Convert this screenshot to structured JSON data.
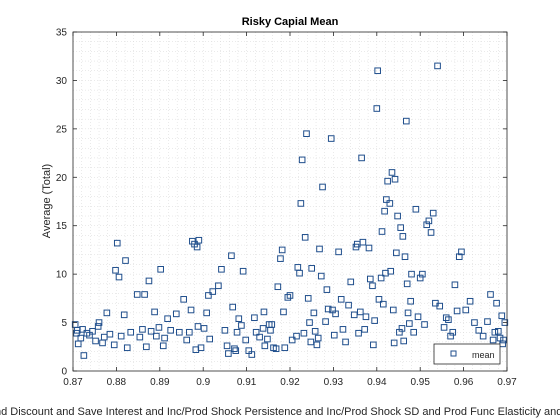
{
  "chart_data": {
    "type": "scatter",
    "title": "Risky Capial Mean",
    "xlabel": "Rand and Discount and Save Interest and Inc/Prod Shock Persistence and Inc/Prod Shock SD and Prod Func Elasticity and ... Discount",
    "ylabel": "Average (Total)",
    "xlim": [
      0.87,
      0.97
    ],
    "ylim": [
      0,
      35
    ],
    "xticks": [
      "0.87",
      "0.88",
      "0.89",
      "0.9",
      "0.91",
      "0.92",
      "0.93",
      "0.94",
      "0.95",
      "0.96",
      "0.97"
    ],
    "yticks": [
      "0",
      "5",
      "10",
      "15",
      "20",
      "25",
      "30",
      "35"
    ],
    "grid": "minor dotted",
    "legend_position": "bottom-right",
    "marker": "square",
    "series": [
      {
        "name": "mean",
        "color": "#1f4e8c",
        "points": [
          [
            0.8705,
            4.8
          ],
          [
            0.8708,
            3.9
          ],
          [
            0.871,
            4.2
          ],
          [
            0.8712,
            2.8
          ],
          [
            0.8718,
            3.4
          ],
          [
            0.8722,
            4.3
          ],
          [
            0.8725,
            1.6
          ],
          [
            0.8732,
            3.9
          ],
          [
            0.8738,
            3.7
          ],
          [
            0.8745,
            4.1
          ],
          [
            0.8752,
            3.1
          ],
          [
            0.8758,
            4.6
          ],
          [
            0.876,
            5.0
          ],
          [
            0.8768,
            2.9
          ],
          [
            0.8772,
            3.5
          ],
          [
            0.8778,
            6.0
          ],
          [
            0.8785,
            3.8
          ],
          [
            0.8795,
            2.7
          ],
          [
            0.8798,
            10.4
          ],
          [
            0.8802,
            13.2
          ],
          [
            0.8806,
            9.7
          ],
          [
            0.8811,
            3.6
          ],
          [
            0.8818,
            5.8
          ],
          [
            0.8821,
            11.4
          ],
          [
            0.8825,
            2.4
          ],
          [
            0.8833,
            4.0
          ],
          [
            0.8848,
            7.9
          ],
          [
            0.8854,
            3.5
          ],
          [
            0.886,
            4.3
          ],
          [
            0.8865,
            7.9
          ],
          [
            0.8869,
            2.5
          ],
          [
            0.8875,
            9.3
          ],
          [
            0.888,
            4.1
          ],
          [
            0.8888,
            6.1
          ],
          [
            0.8892,
            3.6
          ],
          [
            0.8898,
            4.5
          ],
          [
            0.8902,
            10.5
          ],
          [
            0.8908,
            2.6
          ],
          [
            0.8911,
            3.4
          ],
          [
            0.8918,
            5.4
          ],
          [
            0.8925,
            4.2
          ],
          [
            0.8938,
            5.9
          ],
          [
            0.8945,
            4.0
          ],
          [
            0.8955,
            7.4
          ],
          [
            0.8962,
            3.2
          ],
          [
            0.8968,
            4.0
          ],
          [
            0.8972,
            6.3
          ],
          [
            0.8975,
            13.4
          ],
          [
            0.898,
            13.1
          ],
          [
            0.8983,
            2.2
          ],
          [
            0.8986,
            12.8
          ],
          [
            0.8988,
            4.6
          ],
          [
            0.899,
            13.5
          ],
          [
            0.8995,
            2.4
          ],
          [
            0.9002,
            4.4
          ],
          [
            0.9008,
            6.0
          ],
          [
            0.9012,
            7.8
          ],
          [
            0.9015,
            3.3
          ],
          [
            0.9022,
            8.2
          ],
          [
            0.9035,
            8.8
          ],
          [
            0.9042,
            10.5
          ],
          [
            0.905,
            4.2
          ],
          [
            0.9055,
            2.6
          ],
          [
            0.9058,
            1.8
          ],
          [
            0.9065,
            11.9
          ],
          [
            0.9068,
            6.6
          ],
          [
            0.9072,
            2.3
          ],
          [
            0.9075,
            2.1
          ],
          [
            0.9078,
            4.0
          ],
          [
            0.9082,
            5.4
          ],
          [
            0.9088,
            4.7
          ],
          [
            0.9092,
            10.3
          ],
          [
            0.9098,
            3.2
          ],
          [
            0.9105,
            2.1
          ],
          [
            0.9112,
            1.7
          ],
          [
            0.9118,
            5.5
          ],
          [
            0.9122,
            4.0
          ],
          [
            0.913,
            3.5
          ],
          [
            0.9138,
            4.4
          ],
          [
            0.914,
            6.1
          ],
          [
            0.9142,
            2.6
          ],
          [
            0.9148,
            3.3
          ],
          [
            0.9152,
            4.8
          ],
          [
            0.9155,
            4.2
          ],
          [
            0.9158,
            4.8
          ],
          [
            0.9162,
            2.4
          ],
          [
            0.9168,
            2.3
          ],
          [
            0.9172,
            8.7
          ],
          [
            0.9178,
            11.6
          ],
          [
            0.9182,
            12.5
          ],
          [
            0.9185,
            6.1
          ],
          [
            0.9188,
            2.4
          ],
          [
            0.9195,
            7.6
          ],
          [
            0.92,
            7.8
          ],
          [
            0.9205,
            3.2
          ],
          [
            0.9215,
            3.6
          ],
          [
            0.9218,
            10.7
          ],
          [
            0.9222,
            10.1
          ],
          [
            0.9225,
            17.3
          ],
          [
            0.9228,
            21.8
          ],
          [
            0.9232,
            3.9
          ],
          [
            0.9235,
            13.8
          ],
          [
            0.9238,
            24.5
          ],
          [
            0.9242,
            7.5
          ],
          [
            0.9245,
            5.0
          ],
          [
            0.9248,
            3.0
          ],
          [
            0.925,
            10.6
          ],
          [
            0.9255,
            6.0
          ],
          [
            0.9258,
            4.1
          ],
          [
            0.9262,
            2.7
          ],
          [
            0.9265,
            3.4
          ],
          [
            0.9268,
            12.6
          ],
          [
            0.9272,
            9.8
          ],
          [
            0.9275,
            19.0
          ],
          [
            0.9282,
            5.1
          ],
          [
            0.9285,
            8.4
          ],
          [
            0.9288,
            6.4
          ],
          [
            0.9295,
            24.0
          ],
          [
            0.9298,
            6.3
          ],
          [
            0.9302,
            3.7
          ],
          [
            0.9305,
            5.9
          ],
          [
            0.9312,
            12.3
          ],
          [
            0.9318,
            7.4
          ],
          [
            0.9322,
            4.3
          ],
          [
            0.9328,
            3.0
          ],
          [
            0.9335,
            6.8
          ],
          [
            0.934,
            9.2
          ],
          [
            0.9348,
            5.8
          ],
          [
            0.9352,
            12.8
          ],
          [
            0.9355,
            13.1
          ],
          [
            0.9358,
            3.9
          ],
          [
            0.9362,
            6.1
          ],
          [
            0.9365,
            22.0
          ],
          [
            0.9368,
            13.3
          ],
          [
            0.9372,
            4.3
          ],
          [
            0.9375,
            5.6
          ],
          [
            0.9382,
            12.7
          ],
          [
            0.9385,
            9.5
          ],
          [
            0.939,
            8.8
          ],
          [
            0.9392,
            2.7
          ],
          [
            0.9395,
            5.2
          ],
          [
            0.94,
            27.1
          ],
          [
            0.9402,
            31.0
          ],
          [
            0.9405,
            7.4
          ],
          [
            0.941,
            9.6
          ],
          [
            0.9412,
            14.4
          ],
          [
            0.9415,
            6.9
          ],
          [
            0.9418,
            16.5
          ],
          [
            0.942,
            10.1
          ],
          [
            0.9422,
            17.7
          ],
          [
            0.9425,
            19.6
          ],
          [
            0.943,
            17.3
          ],
          [
            0.9432,
            10.3
          ],
          [
            0.9435,
            20.5
          ],
          [
            0.9438,
            6.3
          ],
          [
            0.944,
            2.9
          ],
          [
            0.9442,
            19.8
          ],
          [
            0.9445,
            12.2
          ],
          [
            0.9448,
            16.0
          ],
          [
            0.9452,
            4.0
          ],
          [
            0.9455,
            14.8
          ],
          [
            0.9458,
            4.4
          ],
          [
            0.946,
            13.9
          ],
          [
            0.9462,
            3.1
          ],
          [
            0.9465,
            11.8
          ],
          [
            0.9468,
            25.8
          ],
          [
            0.947,
            9.0
          ],
          [
            0.9472,
            6.0
          ],
          [
            0.9475,
            4.9
          ],
          [
            0.9478,
            7.2
          ],
          [
            0.948,
            10.0
          ],
          [
            0.9485,
            4.0
          ],
          [
            0.949,
            16.7
          ],
          [
            0.9495,
            5.6
          ],
          [
            0.95,
            9.6
          ],
          [
            0.9505,
            10.0
          ],
          [
            0.951,
            4.8
          ],
          [
            0.9515,
            15.1
          ],
          [
            0.952,
            15.5
          ],
          [
            0.9525,
            14.3
          ],
          [
            0.953,
            16.3
          ],
          [
            0.9535,
            7.0
          ],
          [
            0.954,
            31.5
          ],
          [
            0.9545,
            6.7
          ],
          [
            0.955,
            2.2
          ],
          [
            0.9555,
            4.5
          ],
          [
            0.956,
            5.5
          ],
          [
            0.9565,
            5.3
          ],
          [
            0.957,
            3.6
          ],
          [
            0.9575,
            4.0
          ],
          [
            0.958,
            8.9
          ],
          [
            0.9585,
            6.2
          ],
          [
            0.959,
            11.8
          ],
          [
            0.9595,
            12.3
          ],
          [
            0.9605,
            6.3
          ],
          [
            0.9615,
            7.2
          ],
          [
            0.9625,
            5.0
          ],
          [
            0.9635,
            4.2
          ],
          [
            0.9645,
            3.6
          ],
          [
            0.9655,
            5.1
          ],
          [
            0.9662,
            7.9
          ],
          [
            0.9668,
            3.2
          ],
          [
            0.9672,
            4.0
          ],
          [
            0.9676,
            7.0
          ],
          [
            0.968,
            4.1
          ],
          [
            0.9684,
            3.4
          ],
          [
            0.9688,
            5.7
          ],
          [
            0.969,
            2.8
          ],
          [
            0.9692,
            3.2
          ],
          [
            0.9695,
            5.0
          ]
        ]
      }
    ]
  }
}
